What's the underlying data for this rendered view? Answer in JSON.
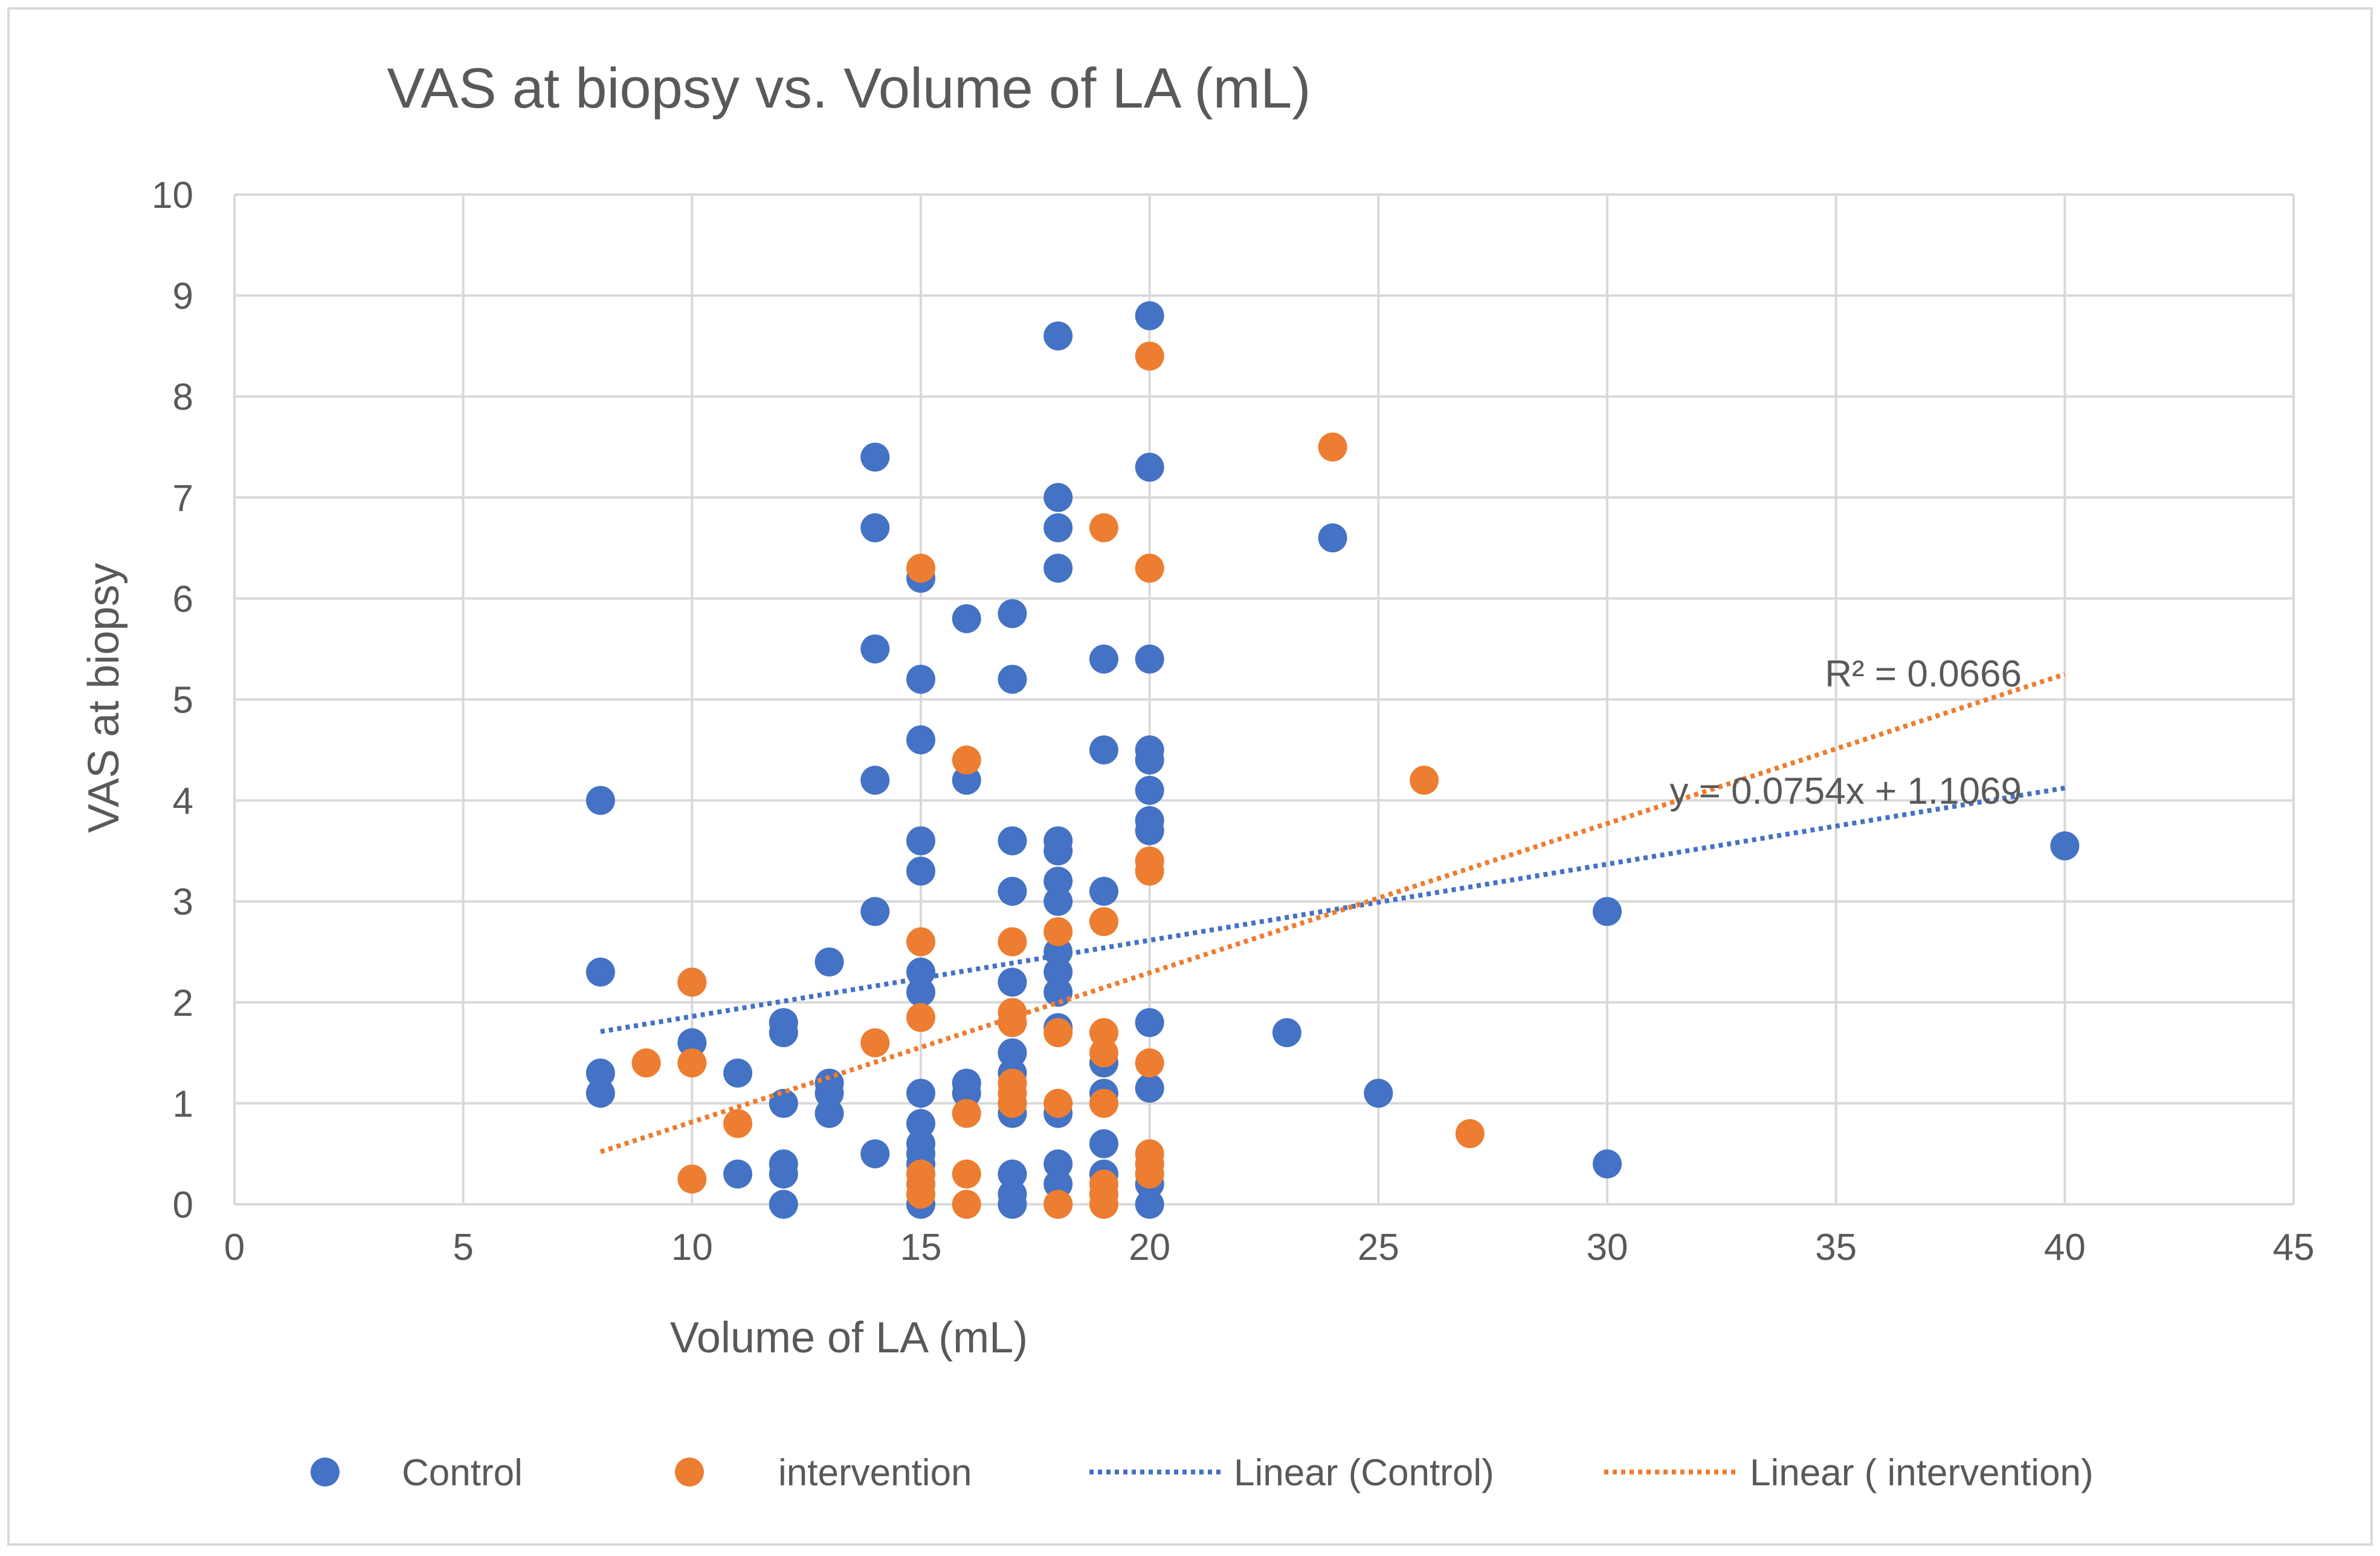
{
  "chart_data": {
    "type": "scatter",
    "title": "VAS at biopsy vs. Volume of LA (mL)",
    "xlabel": "Volume of LA (mL)",
    "ylabel": "VAS at biopsy",
    "xlim": [
      0,
      45
    ],
    "ylim": [
      0,
      10
    ],
    "xticks": [
      0,
      5,
      10,
      15,
      20,
      25,
      30,
      35,
      40,
      45
    ],
    "yticks": [
      0,
      1,
      2,
      3,
      4,
      5,
      6,
      7,
      8,
      9,
      10
    ],
    "grid": true,
    "legend_position": "bottom",
    "series": [
      {
        "name": "Control",
        "color": "#4472C4",
        "points": [
          [
            8,
            4.0
          ],
          [
            8,
            2.3
          ],
          [
            8,
            1.3
          ],
          [
            8,
            1.1
          ],
          [
            10,
            2.2
          ],
          [
            10,
            1.6
          ],
          [
            11,
            1.3
          ],
          [
            11,
            0.3
          ],
          [
            12,
            1.8
          ],
          [
            12,
            1.7
          ],
          [
            12,
            1.0
          ],
          [
            12,
            0.4
          ],
          [
            12,
            0.3
          ],
          [
            12,
            0.0
          ],
          [
            13,
            2.4
          ],
          [
            13,
            1.2
          ],
          [
            13,
            1.1
          ],
          [
            13,
            0.9
          ],
          [
            14,
            7.4
          ],
          [
            14,
            6.7
          ],
          [
            14,
            5.5
          ],
          [
            14,
            4.2
          ],
          [
            14,
            2.9
          ],
          [
            14,
            0.5
          ],
          [
            15,
            6.2
          ],
          [
            15,
            5.2
          ],
          [
            15,
            4.6
          ],
          [
            15,
            3.6
          ],
          [
            15,
            3.3
          ],
          [
            15,
            2.3
          ],
          [
            15,
            2.1
          ],
          [
            15,
            1.1
          ],
          [
            15,
            0.8
          ],
          [
            15,
            0.6
          ],
          [
            15,
            0.5
          ],
          [
            15,
            0.4
          ],
          [
            15,
            0.2
          ],
          [
            15,
            0.0
          ],
          [
            16,
            5.8
          ],
          [
            16,
            4.2
          ],
          [
            16,
            1.2
          ],
          [
            16,
            1.1
          ],
          [
            17,
            5.85
          ],
          [
            17,
            5.2
          ],
          [
            17,
            3.6
          ],
          [
            17,
            3.1
          ],
          [
            17,
            2.2
          ],
          [
            17,
            1.8
          ],
          [
            17,
            1.5
          ],
          [
            17,
            1.3
          ],
          [
            17,
            1.0
          ],
          [
            17,
            0.9
          ],
          [
            17,
            0.3
          ],
          [
            17,
            0.1
          ],
          [
            17,
            0.0
          ],
          [
            18,
            8.6
          ],
          [
            18,
            7.0
          ],
          [
            18,
            6.7
          ],
          [
            18,
            6.3
          ],
          [
            18,
            3.6
          ],
          [
            18,
            3.5
          ],
          [
            18,
            3.2
          ],
          [
            18,
            3.0
          ],
          [
            18,
            2.5
          ],
          [
            18,
            2.3
          ],
          [
            18,
            2.1
          ],
          [
            18,
            1.75
          ],
          [
            18,
            0.9
          ],
          [
            18,
            0.4
          ],
          [
            18,
            0.2
          ],
          [
            18,
            0.0
          ],
          [
            19,
            5.4
          ],
          [
            19,
            4.5
          ],
          [
            19,
            3.1
          ],
          [
            19,
            1.4
          ],
          [
            19,
            1.1
          ],
          [
            19,
            0.6
          ],
          [
            19,
            0.3
          ],
          [
            19,
            0.1
          ],
          [
            20,
            8.8
          ],
          [
            20,
            7.3
          ],
          [
            20,
            5.4
          ],
          [
            20,
            4.5
          ],
          [
            20,
            4.4
          ],
          [
            20,
            4.1
          ],
          [
            20,
            3.8
          ],
          [
            20,
            3.7
          ],
          [
            20,
            1.8
          ],
          [
            20,
            1.15
          ],
          [
            20,
            0.3
          ],
          [
            20,
            0.2
          ],
          [
            20,
            0.0
          ],
          [
            23,
            1.7
          ],
          [
            24,
            6.6
          ],
          [
            25,
            1.1
          ],
          [
            30,
            2.9
          ],
          [
            30,
            0.4
          ],
          [
            40,
            3.55
          ]
        ],
        "trendline": {
          "name": "Linear (Control)",
          "slope": 0.0754,
          "intercept": 1.1069,
          "x_range": [
            8,
            40
          ],
          "equation_label": "y = 0.0754x + 1.1069"
        }
      },
      {
        "name": "intervention",
        "color": "#ED7D31",
        "points": [
          [
            9,
            1.4
          ],
          [
            10,
            2.2
          ],
          [
            10,
            1.4
          ],
          [
            10,
            0.25
          ],
          [
            11,
            0.8
          ],
          [
            14,
            1.6
          ],
          [
            15,
            6.3
          ],
          [
            15,
            2.6
          ],
          [
            15,
            1.85
          ],
          [
            15,
            0.3
          ],
          [
            15,
            0.2
          ],
          [
            15,
            0.1
          ],
          [
            16,
            4.4
          ],
          [
            16,
            0.9
          ],
          [
            16,
            0.3
          ],
          [
            16,
            0.0
          ],
          [
            17,
            2.6
          ],
          [
            17,
            1.9
          ],
          [
            17,
            1.8
          ],
          [
            17,
            1.2
          ],
          [
            17,
            1.1
          ],
          [
            17,
            1.0
          ],
          [
            18,
            2.7
          ],
          [
            18,
            1.7
          ],
          [
            18,
            1.0
          ],
          [
            18,
            0.0
          ],
          [
            19,
            6.7
          ],
          [
            19,
            2.8
          ],
          [
            19,
            1.7
          ],
          [
            19,
            1.5
          ],
          [
            19,
            1.0
          ],
          [
            19,
            0.2
          ],
          [
            19,
            0.1
          ],
          [
            19,
            0.0
          ],
          [
            20,
            8.4
          ],
          [
            20,
            6.3
          ],
          [
            20,
            3.4
          ],
          [
            20,
            3.3
          ],
          [
            20,
            1.4
          ],
          [
            20,
            0.5
          ],
          [
            20,
            0.4
          ],
          [
            20,
            0.3
          ],
          [
            24,
            7.5
          ],
          [
            26,
            4.2
          ],
          [
            27,
            0.7
          ]
        ],
        "trendline": {
          "name": "Linear ( intervention)",
          "start": [
            8,
            0.52
          ],
          "end": [
            40,
            5.25
          ],
          "x_range": [
            8,
            40
          ],
          "r2_label": "R² = 0.0666"
        }
      }
    ],
    "legend": [
      {
        "label": "Control",
        "kind": "marker",
        "color": "#4472C4"
      },
      {
        "label": "intervention",
        "kind": "marker",
        "color": "#ED7D31"
      },
      {
        "label": "Linear (Control)",
        "kind": "line",
        "color": "#4472C4"
      },
      {
        "label": "Linear ( intervention)",
        "kind": "line",
        "color": "#ED7D31"
      }
    ]
  }
}
